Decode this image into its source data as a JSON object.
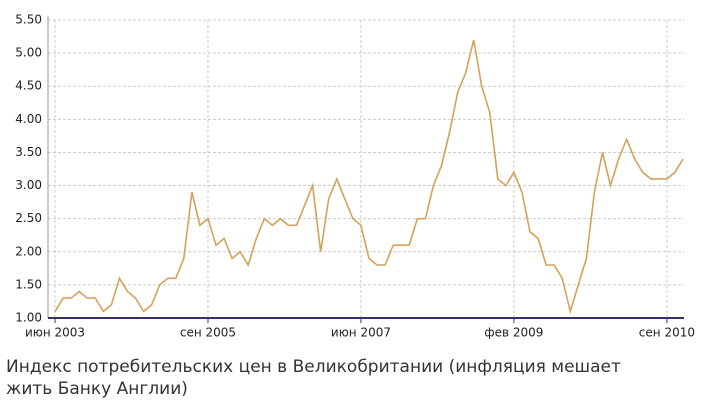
{
  "chart_data": {
    "type": "line",
    "caption": "Индекс потребительских цен в Великобритании (инфляция мешает жить Банку Англии)",
    "categories": [
      "июн 2003",
      null,
      null,
      null,
      null,
      null,
      null,
      null,
      null,
      null,
      null,
      null,
      null,
      null,
      null,
      null,
      null,
      null,
      null,
      "сен 2005",
      null,
      null,
      null,
      null,
      null,
      null,
      null,
      null,
      null,
      null,
      null,
      null,
      null,
      null,
      null,
      null,
      null,
      null,
      "июн 2007",
      null,
      null,
      null,
      null,
      null,
      null,
      null,
      null,
      null,
      null,
      null,
      null,
      null,
      null,
      null,
      null,
      null,
      null,
      "фев 2009",
      null,
      null,
      null,
      null,
      null,
      null,
      null,
      null,
      null,
      null,
      null,
      null,
      null,
      null,
      null,
      null,
      null,
      null,
      "сен 2010",
      null,
      null
    ],
    "series": [
      {
        "color": "#d4a25a",
        "values": [
          1.1,
          1.3,
          1.3,
          1.4,
          1.3,
          1.3,
          1.1,
          1.2,
          1.6,
          1.4,
          1.3,
          1.1,
          1.2,
          1.5,
          1.6,
          1.6,
          1.9,
          2.9,
          2.4,
          2.5,
          2.1,
          2.2,
          1.9,
          2.0,
          1.8,
          2.2,
          2.5,
          2.4,
          2.5,
          2.4,
          2.4,
          2.7,
          3.0,
          2.0,
          2.8,
          3.1,
          2.8,
          2.5,
          2.4,
          1.9,
          1.8,
          1.8,
          2.1,
          2.1,
          2.1,
          2.5,
          2.5,
          3.0,
          3.3,
          3.8,
          4.4,
          4.7,
          5.2,
          4.5,
          4.1,
          3.1,
          3.0,
          3.2,
          2.9,
          2.3,
          2.2,
          1.8,
          1.8,
          1.6,
          1.1,
          1.5,
          1.9,
          2.9,
          3.5,
          3.0,
          3.4,
          3.7,
          3.4,
          3.2,
          3.1,
          3.1,
          3.1,
          3.2,
          3.4
        ]
      }
    ],
    "ylim": [
      1,
      5.5
    ],
    "yticks": [
      {
        "value": 1,
        "label": "1.00"
      },
      {
        "value": 1.5,
        "label": "1.50"
      },
      {
        "value": 2,
        "label": "2.00"
      },
      {
        "value": 2.5,
        "label": "2.50"
      },
      {
        "value": 3,
        "label": "3.00"
      },
      {
        "value": 3.5,
        "label": "3.50"
      },
      {
        "value": 4,
        "label": "4.00"
      },
      {
        "value": 4.5,
        "label": "4.50"
      },
      {
        "value": 5,
        "label": "5.00"
      },
      {
        "value": 5.5,
        "label": "5.50"
      }
    ],
    "grid": true
  }
}
